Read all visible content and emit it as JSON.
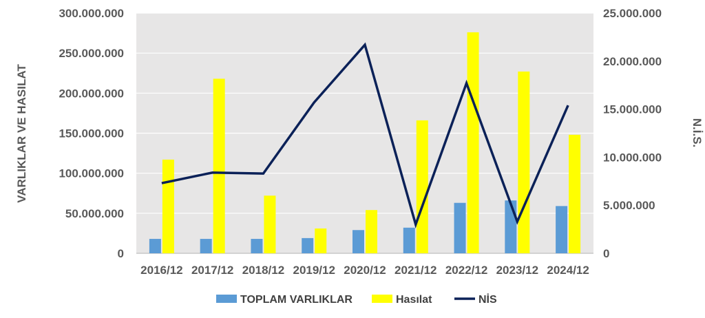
{
  "chart_data": {
    "type": "bar",
    "categories": [
      "2016/12",
      "2017/12",
      "2018/12",
      "2019/12",
      "2020/12",
      "2021/12",
      "2022/12",
      "2023/12",
      "2024/12"
    ],
    "series": [
      {
        "name": "TOPLAM VARLIKLAR",
        "type": "bar",
        "axis": "left",
        "color": "#5B9BD5",
        "values": [
          18000000,
          18000000,
          18000000,
          19000000,
          29000000,
          32000000,
          63000000,
          66000000,
          59000000
        ]
      },
      {
        "name": "Hasılat",
        "type": "bar",
        "axis": "left",
        "color": "#FFFF00",
        "values": [
          117000000,
          218000000,
          72000000,
          31000000,
          54000000,
          166000000,
          276000000,
          227000000,
          148000000
        ]
      },
      {
        "name": "NİS",
        "type": "line",
        "axis": "right",
        "color": "#0B2158",
        "values": [
          7300000,
          8400000,
          8300000,
          15700000,
          21700000,
          3000000,
          17700000,
          3300000,
          15400000
        ]
      }
    ],
    "y_left": {
      "label": "VARLIKLAR VE HASILAT",
      "ylim": [
        0,
        300000000
      ],
      "ticks": [
        0,
        50000000,
        100000000,
        150000000,
        200000000,
        250000000,
        300000000
      ],
      "tick_labels": [
        "0",
        "50.000.000",
        "100.000.000",
        "150.000.000",
        "200.000.000",
        "250.000.000",
        "300.000.000"
      ]
    },
    "y_right": {
      "label": "N.İ.S.",
      "ylim": [
        0,
        25000000
      ],
      "ticks": [
        0,
        5000000,
        10000000,
        15000000,
        20000000,
        25000000
      ],
      "tick_labels": [
        "0",
        "5.000.000",
        "10.000.000",
        "15.000.000",
        "20.000.000",
        "25.000.000"
      ]
    },
    "grid": true,
    "legend_position": "bottom",
    "plot_background": "#E7E6E6"
  }
}
